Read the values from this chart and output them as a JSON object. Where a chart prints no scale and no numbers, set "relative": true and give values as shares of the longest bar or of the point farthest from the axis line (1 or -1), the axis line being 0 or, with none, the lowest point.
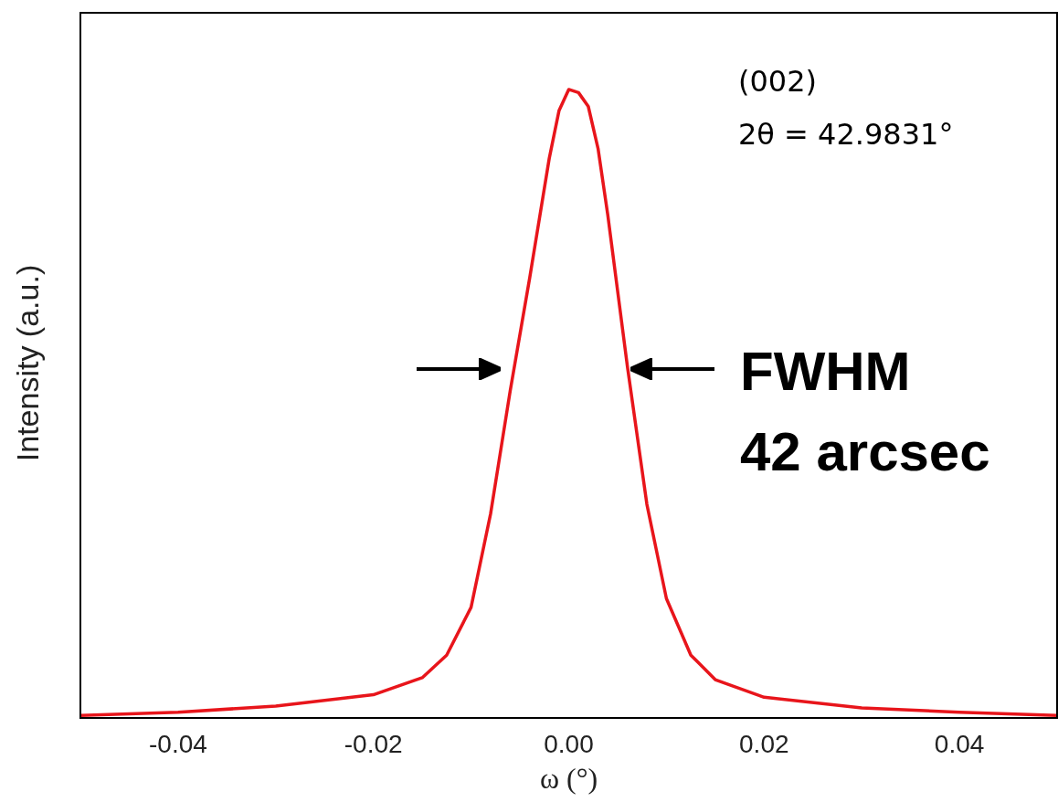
{
  "chart_data": {
    "type": "line",
    "relative": true,
    "xlabel": "ω (°)",
    "ylabel": "Intensity (a.u.)",
    "x": [
      -0.05,
      -0.04,
      -0.03,
      -0.02,
      -0.015,
      -0.0125,
      -0.01,
      -0.008,
      -0.006,
      -0.004,
      -0.002,
      -0.001,
      0,
      0.001,
      0.002,
      0.003,
      0.004,
      0.006,
      0.008,
      0.01,
      0.0125,
      0.015,
      0.02,
      0.03,
      0.04,
      0.05
    ],
    "series": [
      {
        "color": "#e8151b",
        "values": [
          0.004,
          0.009,
          0.019,
          0.037,
          0.064,
          0.1,
          0.176,
          0.325,
          0.52,
          0.7,
          0.89,
          0.966,
          1,
          0.995,
          0.973,
          0.906,
          0.8,
          0.56,
          0.34,
          0.19,
          0.1,
          0.061,
          0.033,
          0.016,
          0.009,
          0.004
        ]
      }
    ],
    "xlim": [
      -0.05,
      0.05
    ],
    "xticks": [
      -0.04,
      -0.02,
      {
        "value": 0,
        "label": "0.00"
      },
      0.02,
      0.04
    ],
    "annotations": [
      "(002)",
      "2θ = 42.9831°",
      "FWHM",
      "42 arcsec"
    ],
    "grid": false,
    "legend": false,
    "marker": "none",
    "line_style": "solid"
  }
}
